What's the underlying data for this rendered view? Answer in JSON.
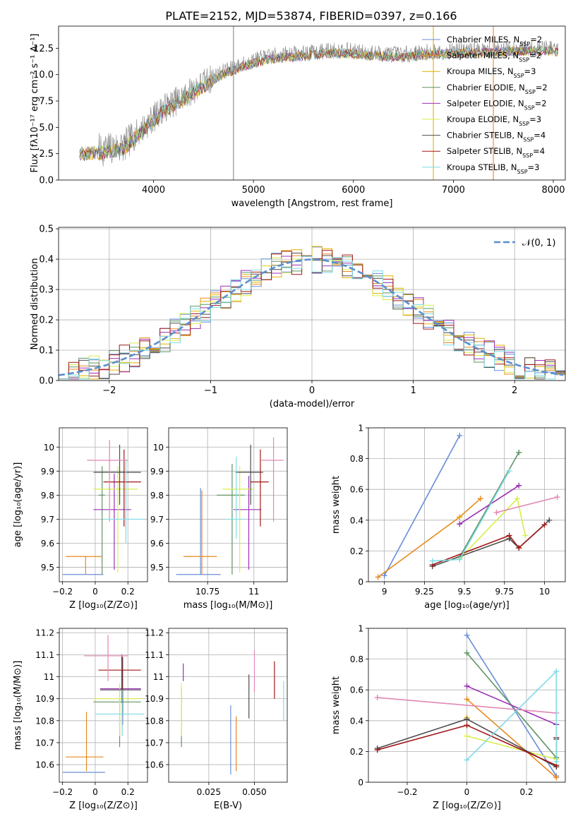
{
  "figure": {
    "title": "PLATE=2152, MJD=53874, FIBERID=0397, z=0.166"
  },
  "chart_data": [
    {
      "id": "spectrum",
      "type": "line",
      "xlabel": "wavelength [Angstrom, rest frame]",
      "ylabel": "Flux [fλ10⁻¹⁷ erg cm⁻² s⁻¹ A⁻¹]",
      "xlim": [
        3050,
        8120
      ],
      "ylim": [
        0,
        14.6
      ],
      "xticks": [
        4000,
        5000,
        6000,
        7000,
        8000
      ],
      "yticks": [
        0.0,
        2.5,
        5.0,
        7.5,
        10.0,
        12.5
      ],
      "x_range_data": [
        3260,
        8050
      ],
      "continuum": {
        "x": [
          3260,
          3500,
          3700,
          3900,
          4100,
          4300,
          4500,
          4700,
          4900,
          5100,
          5300,
          5500,
          5700,
          5900,
          6100,
          6300,
          6500,
          6700,
          6900,
          7100,
          7300,
          7500,
          7700,
          7900,
          8050
        ],
        "y": [
          2.7,
          2.9,
          3.2,
          5.0,
          6.8,
          7.9,
          9.2,
          10.3,
          11.0,
          11.6,
          11.9,
          12.0,
          12.2,
          12.3,
          12.1,
          12.0,
          11.9,
          12.1,
          12.2,
          12.3,
          12.3,
          12.4,
          12.5,
          12.5,
          12.4
        ]
      },
      "legend_position": "top-right",
      "legend": [
        {
          "label": "Chabrier MILES, N",
          "sub": "SSP",
          "rest": "=2",
          "color": "#6a8ed8"
        },
        {
          "label": "Salpeter MILES, N",
          "sub": "SSP",
          "rest": "=2",
          "color": "#e8891f"
        },
        {
          "label": "Kroupa MILES, N",
          "sub": "SSP",
          "rest": "=3",
          "color": "#e2b100"
        },
        {
          "label": "Chabrier ELODIE, N",
          "sub": "SSP",
          "rest": "=2",
          "color": "#5f9464"
        },
        {
          "label": "Salpeter ELODIE, N",
          "sub": "SSP",
          "rest": "=2",
          "color": "#9b2fb5"
        },
        {
          "label": "Kroupa ELODIE, N",
          "sub": "SSP",
          "rest": "=3",
          "color": "#d9ed4c"
        },
        {
          "label": "Chabrier STELIB, N",
          "sub": "SSP",
          "rest": "=4",
          "color": "#4d4d4d"
        },
        {
          "label": "Salpeter STELIB, N",
          "sub": "SSP",
          "rest": "=4",
          "color": "#a01818"
        },
        {
          "label": "Kroupa STELIB, N",
          "sub": "SSP",
          "rest": "=3",
          "color": "#7edbe3"
        }
      ],
      "vertical_lines": [
        {
          "x": 6800,
          "color": "#e2b100"
        },
        {
          "x": 7400,
          "color": "#e8891f"
        },
        {
          "x": 4800,
          "color": "#888888"
        }
      ]
    },
    {
      "id": "residuals",
      "type": "histogram",
      "xlabel": "(data-model)/error",
      "ylabel": "Normed distribution",
      "xlim": [
        -2.5,
        2.5
      ],
      "ylim": [
        0,
        0.505
      ],
      "xticks": [
        -2,
        -1,
        0,
        1,
        2
      ],
      "yticks": [
        0.0,
        0.1,
        0.2,
        0.3,
        0.4,
        0.5
      ],
      "grid": true,
      "bin_width": 0.1,
      "gaussian_label": "𝒩(0, 1)",
      "gaussian_color": "#5b8fd0",
      "legend_position": "top-right"
    },
    {
      "id": "age-vs-Z",
      "type": "errorbar",
      "xlabel": "Z [log₁₀(Z/Z⊙)]",
      "ylabel": "age  [log₁₀(age/yr)]",
      "xlim": [
        -0.22,
        0.32
      ],
      "ylim": [
        9.44,
        10.08
      ],
      "xticks": [
        -0.2,
        0.0,
        0.2
      ],
      "yticks": [
        9.5,
        9.6,
        9.7,
        9.8,
        9.9,
        10.0
      ],
      "grid": true,
      "points": [
        {
          "color": "#6a8ed8",
          "x": [
            -0.2,
            0.05
          ],
          "y": 9.47,
          "yerr": [
            9.47,
            9.47
          ]
        },
        {
          "color": "#e8891f",
          "x": [
            -0.18,
            0.04
          ],
          "y": 9.545,
          "yerr": [
            9.47,
            9.545
          ]
        },
        {
          "color": "#5f9464",
          "x": [
            0.02,
            0.06
          ],
          "y": 9.8,
          "yerr": [
            9.47,
            9.92
          ]
        },
        {
          "color": "#9b2fb5",
          "x": [
            -0.01,
            0.22
          ],
          "y": 9.74,
          "yerr": [
            9.49,
            9.89
          ]
        },
        {
          "color": "#d9ed4c",
          "x": [
            -0.01,
            0.26
          ],
          "y": 9.825,
          "yerr": [
            9.48,
            9.92
          ]
        },
        {
          "color": "#4d4d4d",
          "x": [
            -0.01,
            0.28
          ],
          "y": 9.895,
          "yerr": [
            9.76,
            10.01
          ]
        },
        {
          "color": "#a01818",
          "x": [
            0.05,
            0.28
          ],
          "y": 9.855,
          "yerr": [
            9.67,
            9.99
          ]
        },
        {
          "color": "#e287b3",
          "x": [
            -0.05,
            0.2
          ],
          "y": 9.945,
          "yerr": [
            9.69,
            10.03
          ]
        },
        {
          "color": "#7edbe3",
          "x": [
            0.05,
            0.3
          ],
          "y": 9.7,
          "yerr": [
            9.6,
            9.95
          ]
        }
      ]
    },
    {
      "id": "age-vs-mass",
      "type": "errorbar",
      "xlabel": "mass [log₁₀(M/M⊙)]",
      "ylabel": "",
      "xlim": [
        10.54,
        11.18
      ],
      "ylim": [
        9.44,
        10.08
      ],
      "xticks": [
        10.75,
        11.0
      ],
      "yticks": [
        9.5,
        9.6,
        9.7,
        9.8,
        9.9,
        10.0
      ],
      "grid": true,
      "points": [
        {
          "color": "#6a8ed8",
          "x": [
            10.58,
            10.82
          ],
          "y": 9.47,
          "yerr": [
            9.47,
            9.83
          ]
        },
        {
          "color": "#e8891f",
          "x": [
            10.62,
            10.8
          ],
          "y": 9.545,
          "yerr": [
            9.47,
            9.82
          ]
        },
        {
          "color": "#5f9464",
          "x": [
            10.8,
            10.95
          ],
          "y": 9.8,
          "yerr": [
            9.47,
            9.93
          ]
        },
        {
          "color": "#9b2fb5",
          "x": [
            10.89,
            11.04
          ],
          "y": 9.74,
          "yerr": [
            9.49,
            9.88
          ]
        },
        {
          "color": "#d9ed4c",
          "x": [
            10.83,
            11.0
          ],
          "y": 9.825,
          "yerr": [
            9.48,
            9.92
          ]
        },
        {
          "color": "#4d4d4d",
          "x": [
            10.9,
            11.05
          ],
          "y": 9.895,
          "yerr": [
            9.76,
            10.01
          ]
        },
        {
          "color": "#a01818",
          "x": [
            10.98,
            11.08
          ],
          "y": 9.855,
          "yerr": [
            9.67,
            9.99
          ]
        },
        {
          "color": "#e287b3",
          "x": [
            11.04,
            11.16
          ],
          "y": 9.945,
          "yerr": [
            9.69,
            10.04
          ]
        },
        {
          "color": "#7edbe3",
          "x": [
            10.85,
            10.95
          ],
          "y": 9.7,
          "yerr": [
            9.62,
            9.96
          ]
        }
      ]
    },
    {
      "id": "weight-vs-age",
      "type": "line",
      "xlabel": "age  [log₁₀(age/yr)]",
      "ylabel": "mass weight",
      "xlim": [
        8.9,
        10.13
      ],
      "ylim": [
        0.0,
        1.0
      ],
      "xticks": [
        9.0,
        9.25,
        9.5,
        9.75,
        10.0
      ],
      "yticks": [
        0.0,
        0.2,
        0.4,
        0.6,
        0.8,
        1.0
      ],
      "grid": true,
      "series": [
        {
          "color": "#6a8ed8",
          "x": [
            9.0,
            9.47
          ],
          "y": [
            0.04,
            0.95
          ]
        },
        {
          "color": "#e8891f",
          "x": [
            8.96,
            9.47,
            9.6
          ],
          "y": [
            0.03,
            0.42,
            0.54
          ]
        },
        {
          "color": "#e2b100",
          "x": [
            9.47
          ],
          "y": [
            0.42
          ]
        },
        {
          "color": "#5f9464",
          "x": [
            9.47,
            9.84
          ],
          "y": [
            0.16,
            0.84
          ]
        },
        {
          "color": "#9b2fb5",
          "x": [
            9.47,
            9.84
          ],
          "y": [
            0.375,
            0.625
          ]
        },
        {
          "color": "#d9ed4c",
          "x": [
            9.47,
            9.83,
            9.88
          ],
          "y": [
            0.15,
            0.54,
            0.3
          ]
        },
        {
          "color": "#4d4d4d",
          "x": [
            9.3,
            9.78,
            9.84,
            10.03
          ],
          "y": [
            0.1,
            0.28,
            0.22,
            0.4
          ]
        },
        {
          "color": "#a01818",
          "x": [
            9.3,
            9.78,
            9.84,
            10.0
          ],
          "y": [
            0.11,
            0.3,
            0.22,
            0.37
          ]
        },
        {
          "color": "#e287b3",
          "x": [
            9.7,
            10.08
          ],
          "y": [
            0.45,
            0.55
          ]
        },
        {
          "color": "#7edbe3",
          "x": [
            9.3,
            9.47,
            9.78
          ],
          "y": [
            0.135,
            0.145,
            0.72
          ]
        }
      ]
    },
    {
      "id": "mass-vs-Z",
      "type": "errorbar",
      "xlabel": "Z [log₁₀(Z/Z⊙)]",
      "ylabel": "mass [log₁₀(M/M⊙)]",
      "xlim": [
        -0.22,
        0.32
      ],
      "ylim": [
        10.52,
        11.22
      ],
      "xticks": [
        -0.2,
        0.0,
        0.2
      ],
      "yticks": [
        10.6,
        10.7,
        10.8,
        10.9,
        11.0,
        11.1,
        11.2
      ],
      "grid": true,
      "points": [
        {
          "color": "#6a8ed8",
          "x": [
            -0.2,
            0.06
          ],
          "y": 10.565,
          "yerr": [
            10.565,
            10.565
          ]
        },
        {
          "color": "#e8891f",
          "x": [
            -0.18,
            0.05
          ],
          "y": 10.635,
          "yerr": [
            10.57,
            10.84
          ]
        },
        {
          "color": "#5f9464",
          "x": [
            -0.01,
            0.28
          ],
          "y": 10.885,
          "yerr": [
            10.68,
            10.96
          ]
        },
        {
          "color": "#9b2fb5",
          "x": [
            0.03,
            0.28
          ],
          "y": 10.945,
          "yerr": [
            10.78,
            11.09
          ]
        },
        {
          "color": "#d9ed4c",
          "x": [
            -0.01,
            0.28
          ],
          "y": 10.9,
          "yerr": [
            10.73,
            10.97
          ]
        },
        {
          "color": "#4d4d4d",
          "x": [
            0.03,
            0.28
          ],
          "y": 10.94,
          "yerr": [
            10.82,
            11.09
          ]
        },
        {
          "color": "#a01818",
          "x": [
            0.02,
            0.28
          ],
          "y": 11.03,
          "yerr": [
            10.88,
            11.1
          ]
        },
        {
          "color": "#e287b3",
          "x": [
            -0.07,
            0.2
          ],
          "y": 11.095,
          "yerr": [
            10.98,
            11.19
          ]
        },
        {
          "color": "#7edbe3",
          "x": [
            0.0,
            0.3
          ],
          "y": 10.83,
          "yerr": [
            10.73,
            10.94
          ]
        }
      ]
    },
    {
      "id": "mass-vs-EBV",
      "type": "errorbar",
      "xlabel": "E(B-V)",
      "ylabel": "",
      "xlim": [
        0.003,
        0.068
      ],
      "ylim": [
        10.52,
        11.22
      ],
      "xticks": [
        0.025,
        0.05
      ],
      "xtick_labels": [
        "0.025",
        "0.050"
      ],
      "yticks": [
        10.6,
        10.7,
        10.8,
        10.9,
        11.0,
        11.1,
        11.2
      ],
      "grid": true,
      "points": [
        {
          "color": "#6a8ed8",
          "x": 0.037,
          "yerr": [
            10.555,
            10.87
          ]
        },
        {
          "color": "#e8891f",
          "x": 0.04,
          "yerr": [
            10.57,
            10.82
          ]
        },
        {
          "color": "#5f9464",
          "x": 0.01,
          "yerr": [
            10.68,
            10.95
          ]
        },
        {
          "color": "#9b2fb5",
          "x": 0.011,
          "yerr": [
            10.98,
            11.06
          ]
        },
        {
          "color": "#d9ed4c",
          "x": 0.01,
          "yerr": [
            10.73,
            10.97
          ]
        },
        {
          "color": "#4d4d4d",
          "x": 0.047,
          "yerr": [
            10.81,
            11.01
          ]
        },
        {
          "color": "#a01818",
          "x": 0.061,
          "yerr": [
            10.9,
            11.07
          ]
        },
        {
          "color": "#e287b3",
          "x": 0.05,
          "yerr": [
            10.93,
            11.12
          ]
        },
        {
          "color": "#7edbe3",
          "x": 0.066,
          "yerr": [
            10.8,
            10.98
          ]
        }
      ]
    },
    {
      "id": "weight-vs-Z",
      "type": "line",
      "xlabel": "Z [log₁₀(Z/Z⊙)]",
      "ylabel": "mass weight",
      "xlim": [
        -0.33,
        0.33
      ],
      "ylim": [
        0.0,
        1.0
      ],
      "xticks": [
        -0.2,
        0.0,
        0.2
      ],
      "yticks": [
        0.0,
        0.2,
        0.4,
        0.6,
        0.8,
        1.0
      ],
      "grid": true,
      "series": [
        {
          "color": "#6a8ed8",
          "x": [
            0.0,
            0.3
          ],
          "y": [
            0.955,
            0.04
          ]
        },
        {
          "color": "#e8891f",
          "x": [
            0.0,
            0.3
          ],
          "y": [
            0.54,
            0.03
          ]
        },
        {
          "color": "#e2b100",
          "x": [
            0.0
          ],
          "y": [
            0.42
          ]
        },
        {
          "color": "#5f9464",
          "x": [
            0.0,
            0.3
          ],
          "y": [
            0.84,
            0.16
          ]
        },
        {
          "color": "#9b2fb5",
          "x": [
            0.0,
            0.3
          ],
          "y": [
            0.625,
            0.375
          ]
        },
        {
          "color": "#d9ed4c",
          "x": [
            0.0,
            0.3
          ],
          "y": [
            0.3,
            0.15
          ]
        },
        {
          "color": "#4d4d4d",
          "x": [
            -0.3,
            0.0,
            0.3,
            0.3
          ],
          "y": [
            0.22,
            0.41,
            0.1,
            0.28
          ]
        },
        {
          "color": "#a01818",
          "x": [
            -0.3,
            0.0,
            0.3,
            0.3
          ],
          "y": [
            0.21,
            0.37,
            0.11,
            0.29
          ]
        },
        {
          "color": "#e287b3",
          "x": [
            -0.3,
            0.3
          ],
          "y": [
            0.55,
            0.45
          ]
        },
        {
          "color": "#7edbe3",
          "x": [
            0.0,
            0.3,
            0.3
          ],
          "y": [
            0.145,
            0.72,
            0.135
          ]
        }
      ]
    }
  ]
}
